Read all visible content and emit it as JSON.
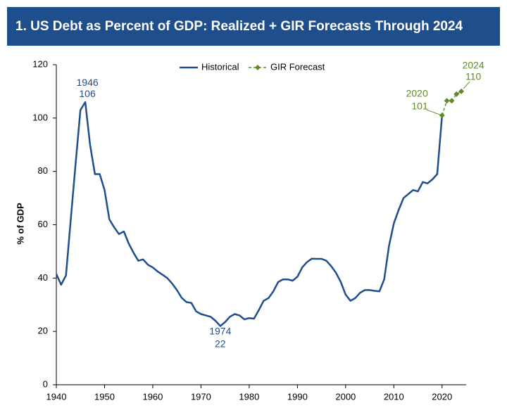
{
  "chart_data": {
    "type": "line",
    "title": "1. US Debt as Percent of GDP: Realized + GIR Forecasts Through 2024",
    "y_label": "% of GDP",
    "xlim": [
      1940,
      2025
    ],
    "xticks": [
      1940,
      1950,
      1960,
      1970,
      1980,
      1990,
      2000,
      2010,
      2020
    ],
    "ylim": [
      0,
      120
    ],
    "yticks": [
      0,
      20,
      40,
      60,
      80,
      100,
      120
    ],
    "legend": "top",
    "series": [
      {
        "name": "Historical",
        "color": "#1f4e8c",
        "dashed": false,
        "markers": false,
        "x": [
          1940,
          1941,
          1942,
          1943,
          1944,
          1945,
          1946,
          1947,
          1948,
          1949,
          1950,
          1951,
          1952,
          1953,
          1954,
          1955,
          1956,
          1957,
          1958,
          1959,
          1960,
          1961,
          1962,
          1963,
          1964,
          1965,
          1966,
          1967,
          1968,
          1969,
          1970,
          1971,
          1972,
          1973,
          1974,
          1975,
          1976,
          1977,
          1978,
          1979,
          1980,
          1981,
          1982,
          1983,
          1984,
          1985,
          1986,
          1987,
          1988,
          1989,
          1990,
          1991,
          1992,
          1993,
          1994,
          1995,
          1996,
          1997,
          1998,
          1999,
          2000,
          2001,
          2002,
          2003,
          2004,
          2005,
          2006,
          2007,
          2008,
          2009,
          2010,
          2011,
          2012,
          2013,
          2014,
          2015,
          2016,
          2017,
          2018,
          2019,
          2020
        ],
        "values": [
          41.5,
          37.5,
          41,
          62,
          83,
          103,
          106,
          90,
          79,
          79,
          73,
          62,
          59,
          56.5,
          57.5,
          53,
          49.5,
          46.5,
          47,
          45,
          44,
          42.5,
          41.3,
          40,
          38,
          35.5,
          32.6,
          31,
          30.7,
          27.5,
          26.5,
          26,
          25.5,
          24,
          22,
          23.5,
          25.5,
          26.5,
          26,
          24.5,
          25,
          24.8,
          28,
          31.5,
          32.5,
          35,
          38.5,
          39.5,
          39.5,
          39,
          40.5,
          44,
          46,
          47.3,
          47.2,
          47.2,
          46.5,
          44.5,
          42,
          38.5,
          33.8,
          31.5,
          32.5,
          34.5,
          35.5,
          35.5,
          35.2,
          35,
          39.5,
          52,
          60.5,
          65.5,
          70,
          71.5,
          73,
          72.5,
          76,
          75.5,
          77,
          79,
          101
        ]
      },
      {
        "name": "GIR Forecast",
        "color": "#5b8c2a",
        "dashed": true,
        "markers": true,
        "x": [
          2020,
          2021,
          2022,
          2023,
          2024
        ],
        "values": [
          101,
          106.5,
          106.5,
          109,
          110
        ]
      }
    ],
    "annotations": [
      {
        "x": 1946,
        "y": 106
      },
      {
        "x": 1974,
        "y": 22
      },
      {
        "x": 2020,
        "y": 101
      },
      {
        "x": 2024,
        "y": 110
      }
    ]
  }
}
